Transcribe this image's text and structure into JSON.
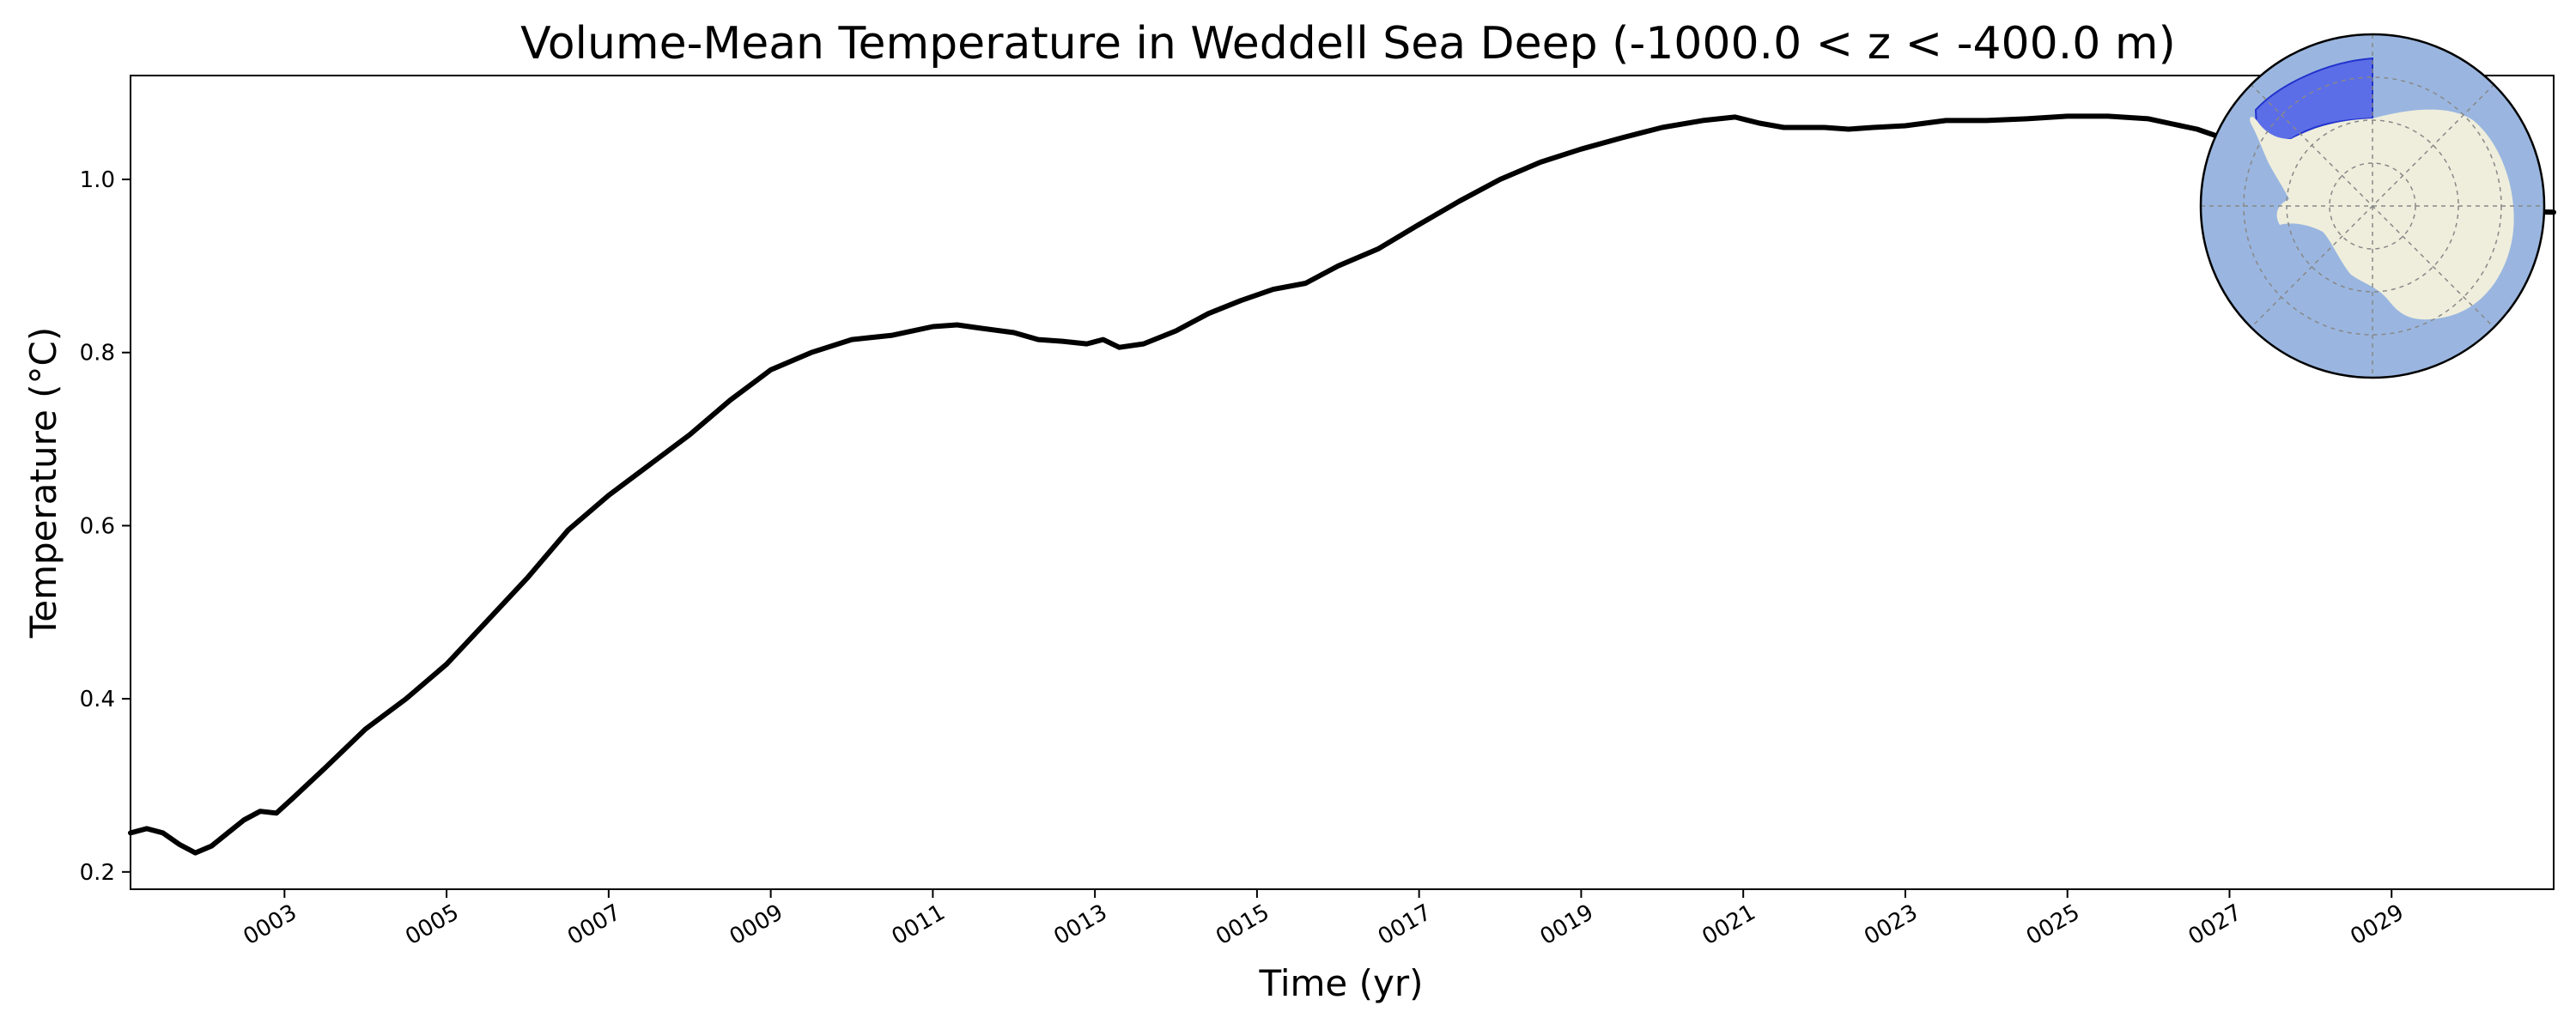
{
  "chart_data": {
    "type": "line",
    "title": "Volume-Mean Temperature in Weddell Sea Deep (-1000.0 < z < -400.0 m)",
    "xlabel": "Time (yr)",
    "ylabel": "Temperature (°C)",
    "xlim": [
      1.1,
      31.0
    ],
    "ylim": [
      0.18,
      1.12
    ],
    "xticks": [
      3,
      5,
      7,
      9,
      11,
      13,
      15,
      17,
      19,
      21,
      23,
      25,
      27,
      29
    ],
    "xtick_labels": [
      "0003",
      "0005",
      "0007",
      "0009",
      "0011",
      "0013",
      "0015",
      "0017",
      "0019",
      "0021",
      "0023",
      "0025",
      "0027",
      "0029"
    ],
    "yticks": [
      0.2,
      0.4,
      0.6,
      0.8,
      1.0
    ],
    "ytick_labels": [
      "0.2",
      "0.4",
      "0.6",
      "0.8",
      "1.0"
    ],
    "grid": false,
    "series": [
      {
        "line_color": "#000000",
        "x": [
          1.1,
          1.3,
          1.5,
          1.7,
          1.9,
          2.1,
          2.3,
          2.5,
          2.7,
          2.9,
          3.1,
          3.5,
          4.0,
          4.5,
          5.0,
          5.5,
          6.0,
          6.5,
          7.0,
          7.5,
          8.0,
          8.5,
          9.0,
          9.5,
          10.0,
          10.5,
          11.0,
          11.3,
          11.6,
          12.0,
          12.3,
          12.6,
          12.9,
          13.1,
          13.3,
          13.6,
          14.0,
          14.4,
          14.8,
          15.2,
          15.6,
          16.0,
          16.5,
          17.0,
          17.5,
          18.0,
          18.5,
          19.0,
          19.5,
          20.0,
          20.5,
          20.9,
          21.2,
          21.5,
          22.0,
          22.3,
          22.6,
          23.0,
          23.5,
          24.0,
          24.5,
          25.0,
          25.5,
          26.0,
          26.3,
          26.6,
          27.0,
          28.0,
          29.0,
          30.0,
          31.0
        ],
        "y": [
          0.245,
          0.25,
          0.245,
          0.232,
          0.222,
          0.23,
          0.245,
          0.26,
          0.27,
          0.268,
          0.285,
          0.32,
          0.365,
          0.4,
          0.44,
          0.49,
          0.54,
          0.595,
          0.635,
          0.67,
          0.705,
          0.745,
          0.78,
          0.8,
          0.815,
          0.82,
          0.83,
          0.832,
          0.828,
          0.823,
          0.815,
          0.813,
          0.81,
          0.815,
          0.806,
          0.81,
          0.825,
          0.845,
          0.86,
          0.873,
          0.88,
          0.9,
          0.92,
          0.948,
          0.975,
          1.0,
          1.02,
          1.035,
          1.048,
          1.06,
          1.068,
          1.072,
          1.065,
          1.06,
          1.06,
          1.058,
          1.06,
          1.062,
          1.068,
          1.068,
          1.07,
          1.073,
          1.073,
          1.07,
          1.064,
          1.058,
          1.045,
          1.02,
          0.99,
          0.965,
          0.962
        ]
      }
    ],
    "inset_map": {
      "type": "south-polar-stereographic",
      "ocean_color": "#9ab6e0",
      "land_color": "#efeedc",
      "region_color": "#5566e8",
      "region": "Weddell Sea"
    }
  }
}
